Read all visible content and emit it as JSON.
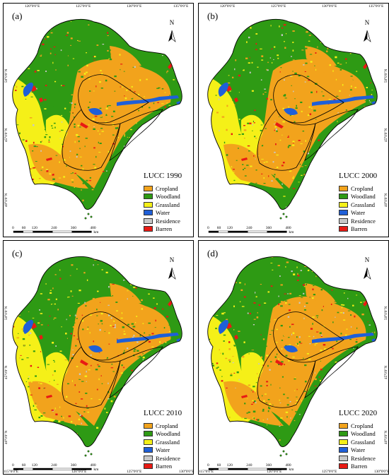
{
  "panels": [
    {
      "id": "a",
      "label": "(a)",
      "year_title": "LUCC 1990",
      "top_coords": [
        "120°0'0\"E",
        "125°0'0\"E",
        "130°0'0\"E",
        "135°0'0\"E"
      ],
      "left_coords": [
        "50°0'0\"N",
        "45°0'0\"N",
        "40°0'0\"N"
      ],
      "bottom_coords": [],
      "right_coords": []
    },
    {
      "id": "b",
      "label": "(b)",
      "year_title": "LUCC 2000",
      "top_coords": [
        "120°0'0\"E",
        "125°0'0\"E",
        "130°0'0\"E",
        "135°0'0\"E"
      ],
      "left_coords": [],
      "bottom_coords": [],
      "right_coords": [
        "50°0'0\"N",
        "45°0'0\"N",
        "40°0'0\"N"
      ]
    },
    {
      "id": "c",
      "label": "(c)",
      "year_title": "LUCC 2010",
      "top_coords": [],
      "left_coords": [
        "50°0'0\"N",
        "45°0'0\"N",
        "40°0'0\"N"
      ],
      "bottom_coords": [
        "115°0'0\"E",
        "120°0'0\"E",
        "125°0'0\"E",
        "130°0'0\"E"
      ],
      "right_coords": []
    },
    {
      "id": "d",
      "label": "(d)",
      "year_title": "LUCC 2020",
      "top_coords": [],
      "left_coords": [],
      "bottom_coords": [
        "115°0'0\"E",
        "120°0'0\"E",
        "125°0'0\"E",
        "130°0'0\"E"
      ],
      "right_coords": [
        "50°0'0\"N",
        "45°0'0\"N",
        "40°0'0\"N"
      ]
    }
  ],
  "legend": [
    {
      "label": "Cropland",
      "color": "#f2a31c"
    },
    {
      "label": "Woodland",
      "color": "#2e9a14"
    },
    {
      "label": "Grassland",
      "color": "#f5f018"
    },
    {
      "label": "Water",
      "color": "#1f5fd8"
    },
    {
      "label": "Residence",
      "color": "#c8c8c8"
    },
    {
      "label": "Barren",
      "color": "#e81a14"
    }
  ],
  "scale_bar": {
    "ticks": [
      "0",
      "60",
      "120",
      "240",
      "360",
      "480"
    ],
    "unit": "km"
  },
  "north_arrow": {
    "label": "N"
  },
  "colors": {
    "cropland": "#f2a31c",
    "woodland": "#2e9a14",
    "grassland": "#f5f018",
    "water": "#1f5fd8",
    "residence": "#c8c8c8",
    "barren": "#e81a14"
  }
}
